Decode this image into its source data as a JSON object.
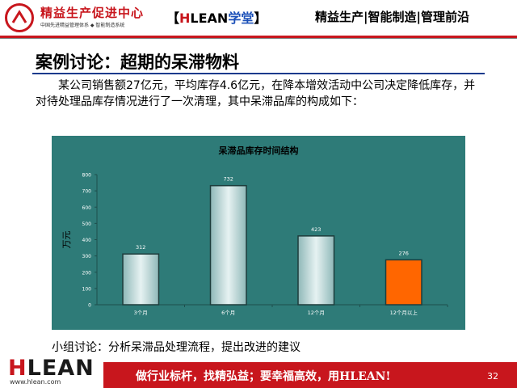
{
  "header": {
    "logo_title": "精益生产促进中心",
    "logo_subtitle": "中国先进精益管理体系 ◆ 智能制造系统",
    "brand_left": "【",
    "brand_h": "H",
    "brand_lean": "LEAN",
    "brand_xt": "学堂",
    "brand_right": "】",
    "slogan": "精益生产|智能制造|管理前沿"
  },
  "slide": {
    "title": "案例讨论：超期的呆滞物料",
    "paragraph": "某公司销售额27亿元，平均库存4.6亿元，在降本增效活动中公司决定降低库存，并对待处理品库存情况进行了一次清理，其中呆滞品库的构成如下：",
    "discussion": "小组讨论：分析呆滞品处理流程，提出改进的建议"
  },
  "chart_data": {
    "type": "bar",
    "title": "呆滞品库存时间结构",
    "ylabel": "万元",
    "xlabel": "",
    "categories": [
      "3个月",
      "6个月",
      "12个月",
      "12个月以上"
    ],
    "values": [
      312,
      732,
      423,
      276
    ],
    "ylim": [
      0,
      800
    ],
    "yticks": [
      0,
      100,
      200,
      300,
      400,
      500,
      600,
      700,
      800
    ],
    "grid": false,
    "colors": {
      "background": "#2e7b78",
      "bar_normal": "#c5dede",
      "bar_highlight": "#ff6600",
      "highlight_index": 3
    }
  },
  "footer": {
    "logo_h": "H",
    "logo_rest": "LEAN",
    "url": "www.hlean.com",
    "slogan": "做行业标杆，找精弘益；要幸福高效，用HLEAN!",
    "page_number": "32"
  },
  "colors": {
    "brand_red": "#c8161d",
    "title_rule": "#1a3a8c"
  }
}
